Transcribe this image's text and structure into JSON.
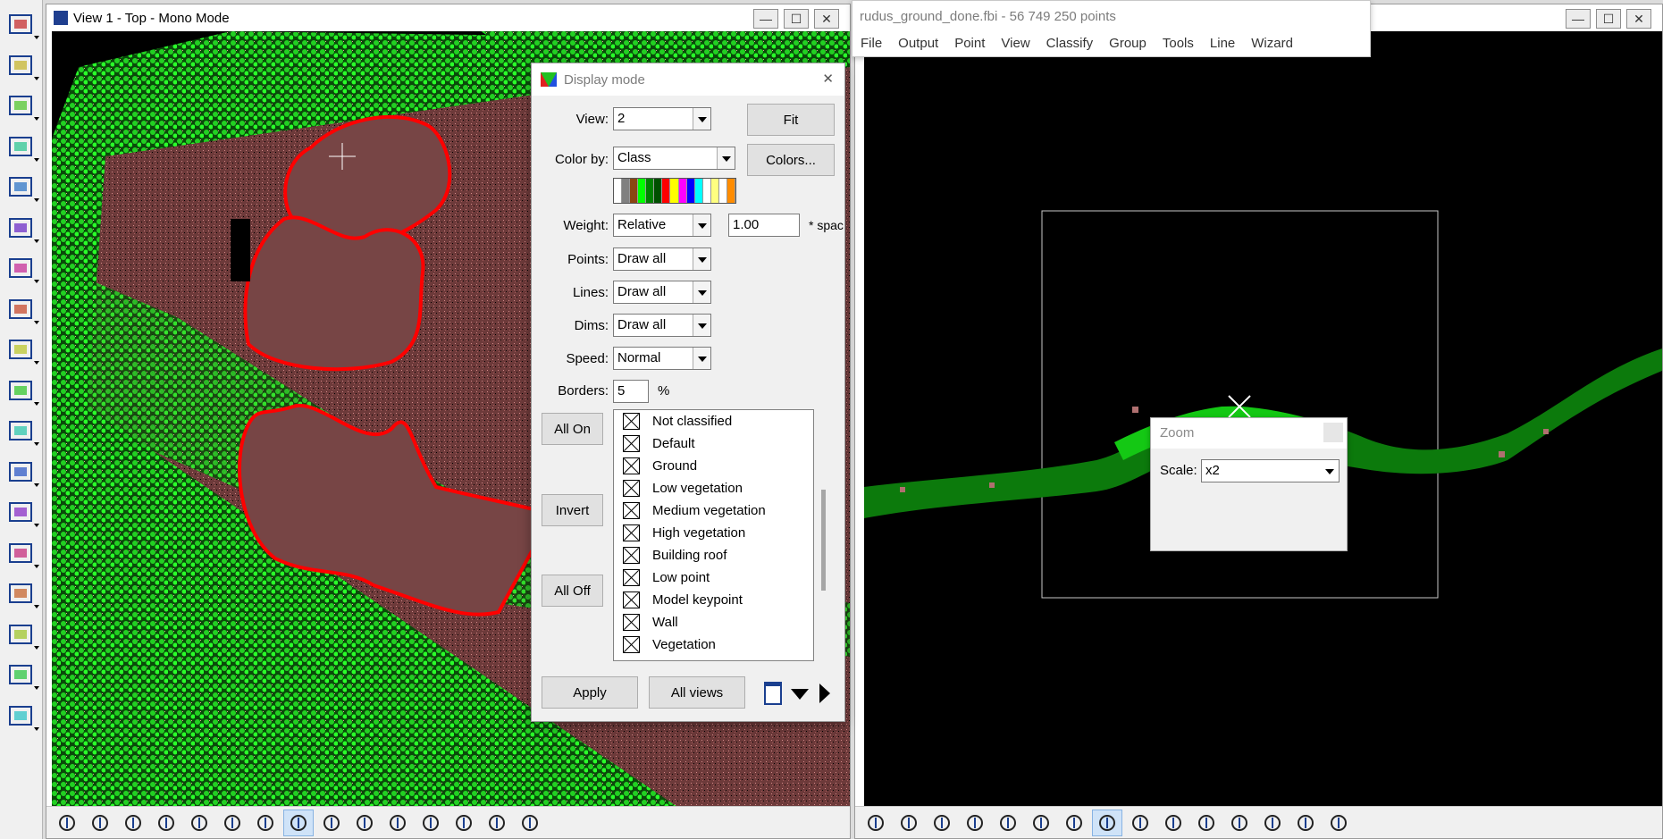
{
  "palette": {
    "tools": [
      "measure-icon",
      "section-icon",
      "point-drop-icon",
      "cut-icon",
      "fence-icon",
      "tower-icon",
      "wire-icon",
      "powerline-icon",
      "profile-icon",
      "light-icon",
      "road-icon",
      "road-edge-icon",
      "paint-icon",
      "frame-icon",
      "layout-icon",
      "report-icon",
      "chart-icon",
      "trees-icon"
    ]
  },
  "view1": {
    "title": "View 1 - Top - Mono Mode",
    "min": "—",
    "max": "☐",
    "close": "✕"
  },
  "view2": {
    "min": "—",
    "max": "☐",
    "close": "✕"
  },
  "menuwin": {
    "title": "rudus_ground_done.fbi - 56 749 250 points",
    "menu": [
      "File",
      "Output",
      "Point",
      "View",
      "Classify",
      "Group",
      "Tools",
      "Line",
      "Wizard"
    ]
  },
  "display_mode": {
    "title": "Display mode",
    "close": "✕",
    "view_label": "View:",
    "view_value": "2",
    "fit_label": "Fit",
    "colorby_label": "Color by:",
    "colorby_value": "Class",
    "colors_label": "Colors...",
    "palette_colors": [
      "#ffffff",
      "#808080",
      "#8b4513",
      "#00ff00",
      "#008000",
      "#005000",
      "#ff0000",
      "#ffff00",
      "#ff00ff",
      "#0000ff",
      "#00ffff",
      "#ffffff",
      "#ffff80",
      "#ffffff",
      "#ff8c00"
    ],
    "weight_label": "Weight:",
    "weight_value": "Relative",
    "weight_num": "1.00",
    "weight_suffix": "* spac",
    "points_label": "Points:",
    "points_value": "Draw all",
    "lines_label": "Lines:",
    "lines_value": "Draw all",
    "dims_label": "Dims:",
    "dims_value": "Draw all",
    "speed_label": "Speed:",
    "speed_value": "Normal",
    "borders_label": "Borders:",
    "borders_value": "5",
    "borders_unit": "%",
    "all_on": "All On",
    "invert": "Invert",
    "all_off": "All Off",
    "classes": [
      "Not classified",
      "Default",
      "Ground",
      "Low vegetation",
      "Medium vegetation",
      "High vegetation",
      "Building roof",
      "Low point",
      "Model keypoint",
      "Wall",
      "Vegetation"
    ],
    "apply": "Apply",
    "all_views": "All views"
  },
  "zoom": {
    "title": "Zoom",
    "scale_label": "Scale:",
    "scale_value": "x2"
  },
  "bottom_tools": [
    "settings-icon",
    "brush-icon",
    "copy-view-icon",
    "stack-icon",
    "pan-icon",
    "terrain-icon",
    "crop-icon",
    "zoom-in-icon",
    "zoom-out-icon",
    "fit-icon",
    "corner-icon",
    "expand-icon",
    "gear-spread-icon",
    "undo-view-icon",
    "redo-view-icon"
  ]
}
